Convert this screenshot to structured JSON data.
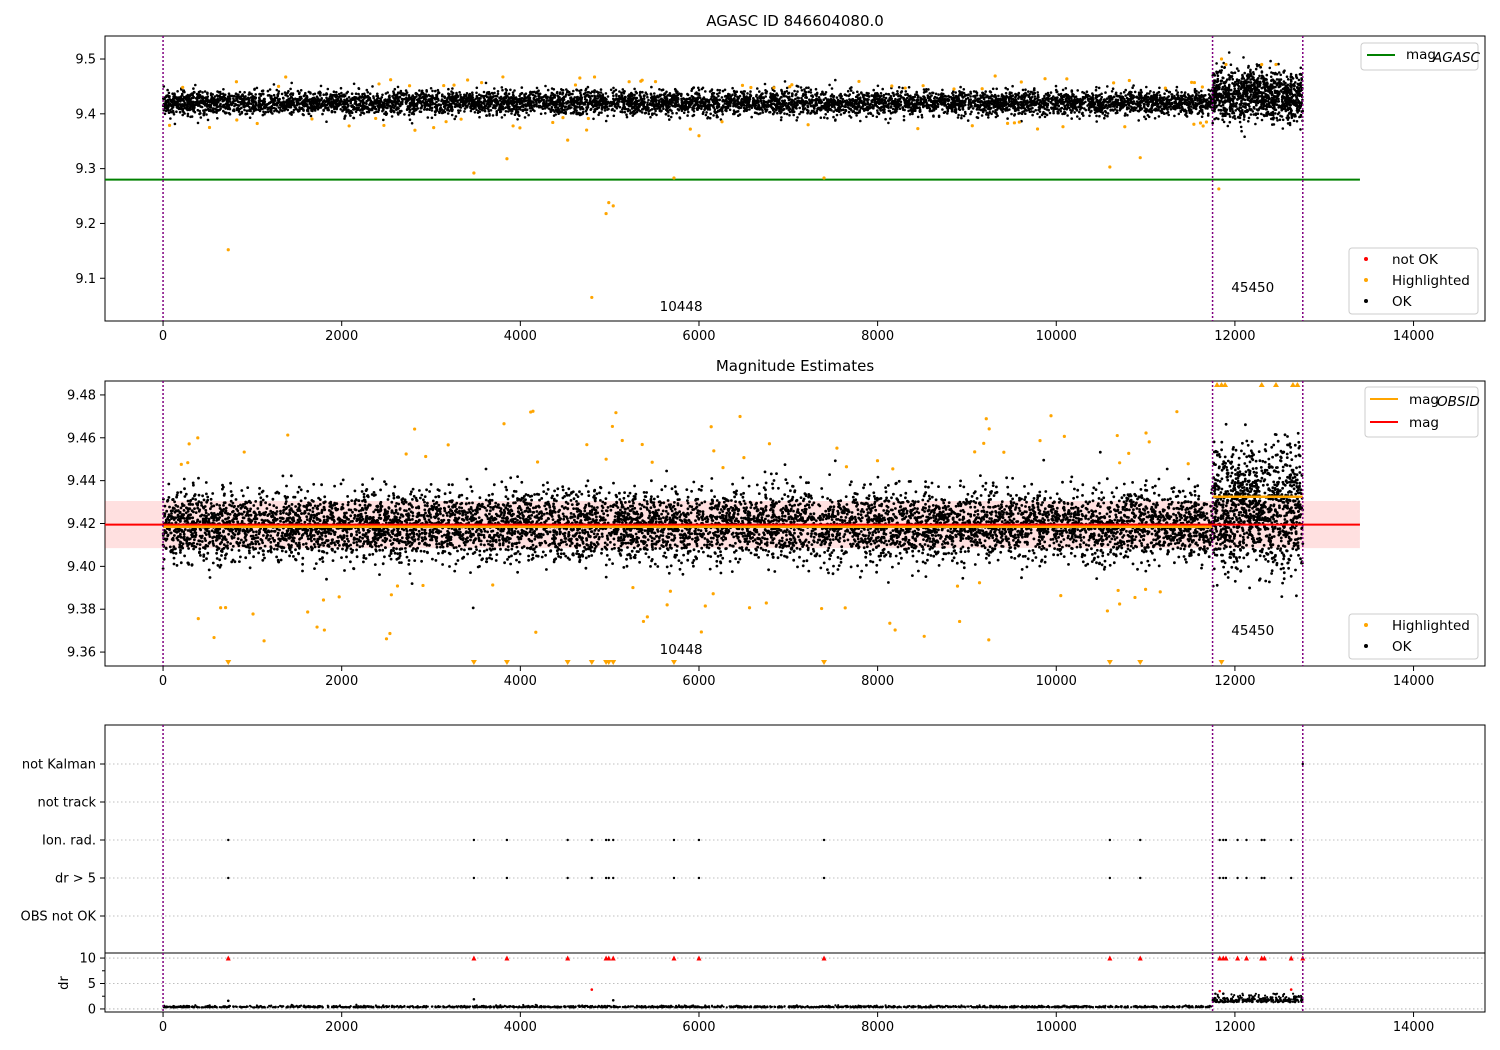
{
  "chart_data": [
    {
      "type": "scatter",
      "title": "AGASC ID 846604080.0",
      "xlim": [
        -650,
        14800
      ],
      "ylim": [
        9.022,
        9.542
      ],
      "x_ticks": [
        0,
        2000,
        4000,
        6000,
        8000,
        10000,
        12000,
        14000
      ],
      "y_ticks": [
        9.1,
        9.2,
        9.3,
        9.4,
        9.5
      ],
      "legend_top": {
        "location": "top-right",
        "entries": [
          {
            "label": "mag",
            "subscript": "AGASC",
            "color": "#008000"
          }
        ]
      },
      "legend_bottom": {
        "location": "bottom-right",
        "entries": [
          {
            "label": "not OK",
            "color": "#ff0000"
          },
          {
            "label": "Highlighted",
            "color": "#ffa500"
          },
          {
            "label": "OK",
            "color": "#000000"
          }
        ]
      },
      "obsid_boundaries": [
        0,
        11750,
        12760
      ],
      "obsid_labels": [
        {
          "text": "10448",
          "x": 5800,
          "y": 9.04
        },
        {
          "text": "45450",
          "x": 12200,
          "y": 9.075
        }
      ],
      "agasc_mag": {
        "value": 9.28,
        "x_range": [
          -650,
          13400
        ]
      },
      "ok_series": [
        {
          "x_range": [
            0,
            11750
          ],
          "center": 9.42,
          "spread": 0.011
        },
        {
          "x_range": [
            11750,
            12760
          ],
          "center": 9.433,
          "spread": 0.022
        }
      ],
      "highlighted_outliers": [
        {
          "x": 730,
          "y": 9.152
        },
        {
          "x": 3480,
          "y": 9.292
        },
        {
          "x": 3850,
          "y": 9.318
        },
        {
          "x": 4530,
          "y": 9.352
        },
        {
          "x": 4800,
          "y": 9.065
        },
        {
          "x": 4960,
          "y": 9.218
        },
        {
          "x": 4990,
          "y": 9.238
        },
        {
          "x": 5040,
          "y": 9.232
        },
        {
          "x": 5720,
          "y": 9.283
        },
        {
          "x": 6000,
          "y": 9.36
        },
        {
          "x": 7400,
          "y": 9.283
        },
        {
          "x": 10600,
          "y": 9.303
        },
        {
          "x": 10940,
          "y": 9.32
        },
        {
          "x": 11820,
          "y": 9.263
        },
        {
          "x": 520,
          "y": 9.375
        },
        {
          "x": 2820,
          "y": 9.37
        },
        {
          "x": 8450,
          "y": 9.373
        },
        {
          "x": 11850,
          "y": 9.5
        },
        {
          "x": 11900,
          "y": 9.49
        },
        {
          "x": 12300,
          "y": 9.49
        },
        {
          "x": 12460,
          "y": 9.49
        }
      ]
    },
    {
      "type": "scatter",
      "title": "Magnitude Estimates",
      "xlim": [
        -650,
        14800
      ],
      "ylim": [
        9.3535,
        9.4865
      ],
      "x_ticks": [
        0,
        2000,
        4000,
        6000,
        8000,
        10000,
        12000,
        14000
      ],
      "y_ticks": [
        9.36,
        9.38,
        9.4,
        9.42,
        9.44,
        9.46,
        9.48
      ],
      "legend_top": {
        "location": "top-right",
        "entries": [
          {
            "label": "mag",
            "subscript": "OBSID",
            "color": "#ffa500"
          },
          {
            "label": "mag",
            "subscript": "",
            "color": "#ff0000"
          }
        ]
      },
      "legend_bottom": {
        "location": "bottom-right",
        "entries": [
          {
            "label": "Highlighted",
            "color": "#ffa500"
          },
          {
            "label": "OK",
            "color": "#000000"
          }
        ]
      },
      "obsid_boundaries": [
        0,
        11750,
        12760
      ],
      "obsid_labels": [
        {
          "text": "10448",
          "x": 5800,
          "y": 9.359
        },
        {
          "text": "45450",
          "x": 12200,
          "y": 9.368
        }
      ],
      "mag": {
        "value": 9.4195,
        "band": [
          9.4085,
          9.4305
        ],
        "x_range": [
          -650,
          13400
        ]
      },
      "mag_obsid": [
        {
          "x_range": [
            0,
            11750
          ],
          "value": 9.4185
        },
        {
          "x_range": [
            11750,
            12760
          ],
          "value": 9.4325
        }
      ],
      "ok_series": [
        {
          "x_range": [
            0,
            11750
          ],
          "center": 9.419,
          "spread": 0.008
        },
        {
          "x_range": [
            11750,
            12760
          ],
          "center": 9.427,
          "spread": 0.014
        }
      ],
      "highlighted_clipped_low_x": [
        730,
        3480,
        3850,
        4530,
        4800,
        4960,
        4990,
        5040,
        5720,
        7400,
        10600,
        10940,
        11850
      ],
      "highlighted_clipped_high_x": [
        11800,
        11850,
        11890,
        12300,
        12460,
        12650,
        12700
      ]
    },
    {
      "type": "scatter",
      "title": "",
      "xlim": [
        -650,
        14800
      ],
      "x_ticks": [
        0,
        2000,
        4000,
        6000,
        8000,
        10000,
        12000,
        14000
      ],
      "flag_rows": [
        "not Kalman",
        "not track",
        "Ion. rad.",
        "dr > 5",
        "OBS not OK"
      ],
      "flag_points_x": [
        730,
        3480,
        3850,
        4530,
        4800,
        4960,
        4990,
        5040,
        5720,
        6000,
        7400,
        10600,
        10940,
        11830,
        11870,
        11900,
        12030,
        12130,
        12300,
        12330,
        12630
      ],
      "obsid_boundaries": [
        0,
        11750,
        12760
      ],
      "dr": {
        "ylabel": "dr",
        "y_ticks": [
          0,
          5,
          10
        ],
        "ylim": [
          -0.6,
          10.6
        ],
        "clipped_at_10_x": [
          730,
          3480,
          3850,
          4530,
          4960,
          4990,
          5040,
          5720,
          6000,
          7400,
          10600,
          10940,
          11830,
          11870,
          11900,
          12030,
          12130,
          12300,
          12330,
          12630,
          12760
        ],
        "ok_series": [
          {
            "x_range": [
              0,
              11750
            ],
            "center": 0.3,
            "spread": 0.15
          },
          {
            "x_range": [
              11750,
              12760
            ],
            "center": 1.3,
            "spread": 0.7
          }
        ],
        "outliers": [
          {
            "x": 730,
            "y": 1.6
          },
          {
            "x": 3480,
            "y": 1.9
          },
          {
            "x": 4800,
            "y": 3.8
          },
          {
            "x": 5040,
            "y": 1.7
          },
          {
            "x": 11830,
            "y": 3.5
          },
          {
            "x": 11870,
            "y": 3.0
          },
          {
            "x": 12630,
            "y": 3.8
          }
        ]
      }
    }
  ]
}
